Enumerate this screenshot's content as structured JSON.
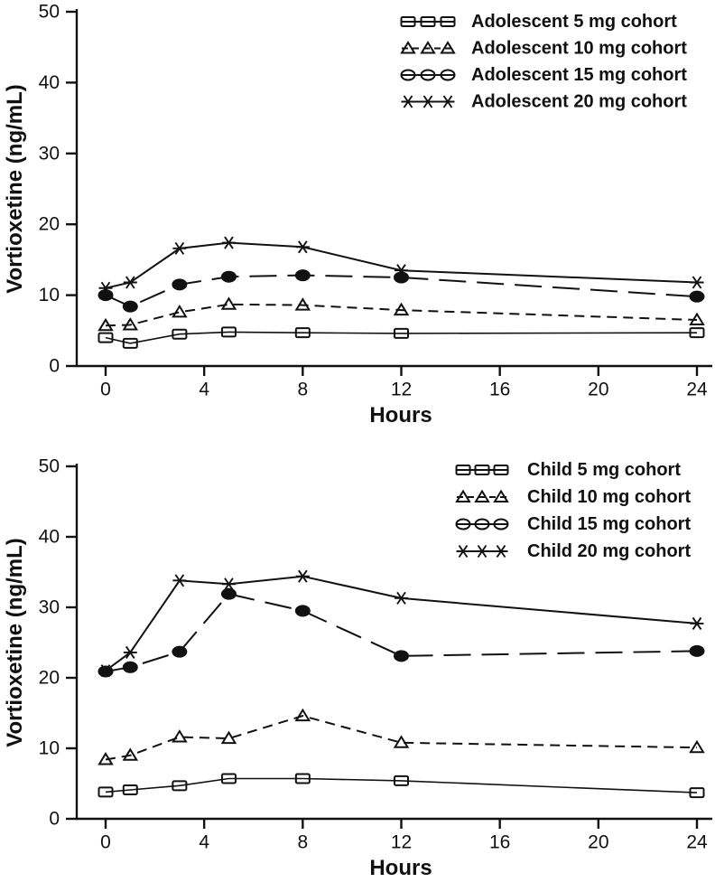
{
  "figure": {
    "background": "#ffffff",
    "ink_color": "#111111",
    "panel_count": 2
  },
  "chart_data": [
    {
      "type": "line",
      "panel": "top",
      "xlabel": "Hours",
      "ylabel": "Vortioxetine (ng/mL)",
      "xlim": [
        0,
        24
      ],
      "ylim": [
        0,
        50
      ],
      "xticks": [
        0,
        4,
        8,
        12,
        16,
        20,
        24
      ],
      "yticks": [
        0,
        10,
        20,
        30,
        40,
        50
      ],
      "grid": false,
      "legend_position": "top-right-inside",
      "x": [
        0,
        1,
        3,
        5,
        8,
        12,
        24
      ],
      "series": [
        {
          "name": "Adolescent 5 mg cohort",
          "marker": "square",
          "line": "solid",
          "values": [
            4.0,
            3.2,
            4.5,
            4.8,
            4.7,
            4.6,
            4.7
          ]
        },
        {
          "name": "Adolescent 10 mg cohort",
          "marker": "triangle",
          "line": "dash",
          "values": [
            5.7,
            5.8,
            7.6,
            8.7,
            8.6,
            7.9,
            6.5
          ]
        },
        {
          "name": "Adolescent 15 mg cohort",
          "marker": "circle",
          "line": "longdash",
          "values": [
            10.0,
            8.4,
            11.5,
            12.6,
            12.8,
            12.5,
            9.8
          ]
        },
        {
          "name": "Adolescent 20 mg cohort",
          "marker": "star",
          "line": "solid",
          "values": [
            11.0,
            11.8,
            16.6,
            17.4,
            16.8,
            13.5,
            11.8
          ]
        }
      ]
    },
    {
      "type": "line",
      "panel": "bottom",
      "xlabel": "Hours",
      "ylabel": "Vortioxetine (ng/mL)",
      "xlim": [
        0,
        24
      ],
      "ylim": [
        0,
        50
      ],
      "xticks": [
        0,
        4,
        8,
        12,
        16,
        20,
        24
      ],
      "yticks": [
        0,
        10,
        20,
        30,
        40,
        50
      ],
      "grid": false,
      "legend_position": "top-right-inside",
      "x": [
        0,
        1,
        3,
        5,
        8,
        12,
        24
      ],
      "series": [
        {
          "name": "Child 5 mg cohort",
          "marker": "square",
          "line": "solid",
          "values": [
            3.8,
            4.1,
            4.7,
            5.7,
            5.7,
            5.4,
            3.7
          ]
        },
        {
          "name": "Child 10 mg cohort",
          "marker": "triangle",
          "line": "dash",
          "values": [
            8.4,
            9.0,
            11.6,
            11.4,
            14.6,
            10.8,
            10.1
          ]
        },
        {
          "name": "Child 15 mg cohort",
          "marker": "circle",
          "line": "longdash",
          "values": [
            20.9,
            21.5,
            23.7,
            31.9,
            29.5,
            23.1,
            23.8
          ]
        },
        {
          "name": "Child 20 mg cohort",
          "marker": "star",
          "line": "solid",
          "values": [
            21.0,
            23.6,
            33.8,
            33.3,
            34.4,
            31.3,
            27.7
          ]
        }
      ]
    }
  ]
}
